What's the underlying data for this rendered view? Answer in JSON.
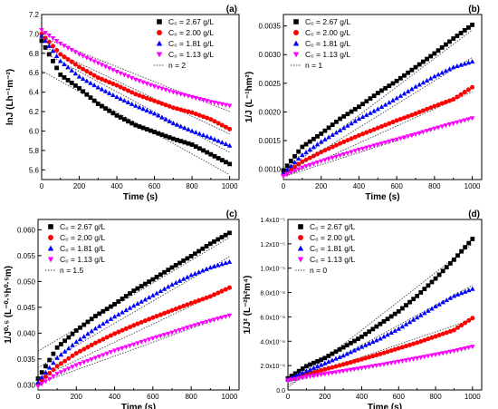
{
  "chart_data": [
    {
      "type": "scatter",
      "panel_label": "(a)",
      "ylabel": "lnJ (Lh⁻¹m⁻²)",
      "xlabel": "Time (s)",
      "xlim": [
        0,
        1050
      ],
      "ylim": [
        5.5,
        7.2
      ],
      "xticks": [
        "0",
        "200",
        "400",
        "600",
        "800",
        "1000"
      ],
      "yticks": [
        "5.6",
        "5.8",
        "6.0",
        "6.2",
        "6.4",
        "6.6",
        "6.8",
        "7.0",
        "7.2"
      ],
      "ytick_values": [
        5.6,
        5.8,
        6.0,
        6.2,
        6.4,
        6.6,
        6.8,
        7.0,
        7.2
      ],
      "legend_position": "top-right",
      "fit_label": "n = 2",
      "series": [
        {
          "name": "C₀ = 2.67 g/L",
          "marker": "square",
          "color": "#000000",
          "x": [
            0,
            100,
            200,
            300,
            400,
            500,
            600,
            700,
            800,
            900,
            1000
          ],
          "y": [
            6.93,
            6.58,
            6.44,
            6.28,
            6.16,
            6.06,
            5.99,
            5.92,
            5.86,
            5.76,
            5.66
          ],
          "fit": [
            [
              0,
              6.62
            ],
            [
              1000,
              5.55
            ]
          ]
        },
        {
          "name": "C₀ = 2.00 g/L",
          "marker": "circle",
          "color": "#ff0000",
          "x": [
            0,
            100,
            200,
            300,
            400,
            500,
            600,
            700,
            800,
            900,
            1000
          ],
          "y": [
            7.0,
            6.79,
            6.66,
            6.55,
            6.47,
            6.38,
            6.31,
            6.24,
            6.19,
            6.12,
            6.02
          ],
          "fit": [
            [
              0,
              6.88
            ],
            [
              1000,
              5.97
            ]
          ]
        },
        {
          "name": "C₀ = 1.81 g/L",
          "marker": "triangle-up",
          "color": "#0000ff",
          "x": [
            0,
            100,
            200,
            300,
            400,
            500,
            600,
            700,
            800,
            900,
            1000
          ],
          "y": [
            6.98,
            6.72,
            6.56,
            6.45,
            6.35,
            6.26,
            6.18,
            6.08,
            6.0,
            5.93,
            5.85
          ],
          "fit": [
            [
              0,
              6.82
            ],
            [
              1000,
              5.78
            ]
          ]
        },
        {
          "name": "C₀ = 1.13 g/L",
          "marker": "triangle-down",
          "color": "#ff00ff",
          "x": [
            0,
            100,
            200,
            300,
            400,
            500,
            600,
            700,
            800,
            900,
            1000
          ],
          "y": [
            7.04,
            6.9,
            6.79,
            6.7,
            6.61,
            6.53,
            6.46,
            6.4,
            6.35,
            6.3,
            6.26
          ],
          "fit": [
            [
              0,
              6.97
            ],
            [
              1000,
              6.2
            ]
          ]
        }
      ]
    },
    {
      "type": "scatter",
      "panel_label": "(b)",
      "ylabel": "1/J (L⁻¹hm²)",
      "xlabel": "Time (s)",
      "xlim": [
        0,
        1050
      ],
      "ylim": [
        0.00082,
        0.0037
      ],
      "xticks": [
        "0",
        "200",
        "400",
        "600",
        "800",
        "1000"
      ],
      "yticks": [
        "0.0010",
        "0.0015",
        "0.0020",
        "0.0025",
        "0.0030",
        "0.0035"
      ],
      "ytick_values": [
        0.001,
        0.0015,
        0.002,
        0.0025,
        0.003,
        0.0035
      ],
      "legend_position": "top-left",
      "fit_label": "n = 1",
      "series": [
        {
          "name": "C₀ = 2.67 g/L",
          "marker": "square",
          "color": "#000000",
          "x": [
            0,
            100,
            200,
            300,
            400,
            500,
            600,
            700,
            800,
            900,
            1000
          ],
          "y": [
            0.00098,
            0.00139,
            0.00162,
            0.00188,
            0.00209,
            0.00233,
            0.00254,
            0.00278,
            0.00302,
            0.00328,
            0.00352
          ],
          "fit": [
            [
              0,
              0.00095
            ],
            [
              1000,
              0.00343
            ]
          ]
        },
        {
          "name": "C₀ = 2.00 g/L",
          "marker": "circle",
          "color": "#ff0000",
          "x": [
            0,
            100,
            200,
            300,
            400,
            500,
            600,
            700,
            800,
            900,
            1000
          ],
          "y": [
            0.00091,
            0.00113,
            0.0013,
            0.00145,
            0.00159,
            0.00172,
            0.00185,
            0.00197,
            0.0021,
            0.00222,
            0.00243
          ],
          "fit": [
            [
              0,
              0.00086
            ],
            [
              1000,
              0.00235
            ]
          ]
        },
        {
          "name": "C₀ = 1.81 g/L",
          "marker": "triangle-up",
          "color": "#0000ff",
          "x": [
            0,
            100,
            200,
            300,
            400,
            500,
            600,
            700,
            800,
            900,
            1000
          ],
          "y": [
            0.00093,
            0.00125,
            0.00148,
            0.00168,
            0.00188,
            0.00205,
            0.00224,
            0.00244,
            0.00262,
            0.00278,
            0.00288
          ],
          "fit": [
            [
              0,
              0.00091
            ],
            [
              1000,
              0.00295
            ]
          ]
        },
        {
          "name": "C₀ = 1.13 g/L",
          "marker": "triangle-down",
          "color": "#ff00ff",
          "x": [
            0,
            100,
            200,
            300,
            400,
            500,
            600,
            700,
            800,
            900,
            1000
          ],
          "y": [
            0.00088,
            0.00103,
            0.00114,
            0.00124,
            0.00134,
            0.00143,
            0.00152,
            0.00161,
            0.00171,
            0.0018,
            0.00189
          ],
          "fit": [
            [
              0,
              0.00087
            ],
            [
              1000,
              0.00192
            ]
          ]
        }
      ]
    },
    {
      "type": "scatter",
      "panel_label": "(c)",
      "ylabel": "1/J⁰·⁵ (L⁻⁰·⁵h⁰·⁵m)",
      "xlabel": "Time (s)",
      "xlim": [
        0,
        1050
      ],
      "ylim": [
        0.029,
        0.062
      ],
      "xticks": [
        "0",
        "200",
        "400",
        "600",
        "800",
        "1000"
      ],
      "yticks": [
        "0.030",
        "0.035",
        "0.040",
        "0.045",
        "0.050",
        "0.055",
        "0.060"
      ],
      "ytick_values": [
        0.03,
        0.035,
        0.04,
        0.045,
        0.05,
        0.055,
        0.06
      ],
      "legend_position": "top-left",
      "fit_label": "n = 1.5",
      "series": [
        {
          "name": "C₀ = 2.67 g/L",
          "marker": "square",
          "color": "#000000",
          "x": [
            0,
            100,
            200,
            300,
            400,
            500,
            600,
            700,
            800,
            900,
            1000
          ],
          "y": [
            0.0312,
            0.0372,
            0.0405,
            0.0433,
            0.0456,
            0.0482,
            0.0504,
            0.0527,
            0.0549,
            0.0573,
            0.0594
          ],
          "fit": [
            [
              0,
              0.0365
            ],
            [
              1000,
              0.0585
            ]
          ]
        },
        {
          "name": "C₀ = 2.00 g/L",
          "marker": "circle",
          "color": "#ff0000",
          "x": [
            0,
            100,
            200,
            300,
            400,
            500,
            600,
            700,
            800,
            900,
            1000
          ],
          "y": [
            0.0302,
            0.0336,
            0.0361,
            0.0381,
            0.0399,
            0.0415,
            0.043,
            0.0444,
            0.0458,
            0.0471,
            0.0488
          ],
          "fit": [
            [
              0,
              0.0312
            ],
            [
              1000,
              0.0488
            ]
          ]
        },
        {
          "name": "C₀ = 1.81 g/L",
          "marker": "triangle-up",
          "color": "#0000ff",
          "x": [
            0,
            100,
            200,
            300,
            400,
            500,
            600,
            700,
            800,
            900,
            1000
          ],
          "y": [
            0.0305,
            0.0352,
            0.0383,
            0.0409,
            0.0432,
            0.0453,
            0.0473,
            0.0494,
            0.0512,
            0.0527,
            0.0538
          ],
          "fit": [
            [
              0,
              0.0333
            ],
            [
              1000,
              0.0548
            ]
          ]
        },
        {
          "name": "C₀ = 1.13 g/L",
          "marker": "triangle-down",
          "color": "#ff00ff",
          "x": [
            0,
            100,
            200,
            300,
            400,
            500,
            600,
            700,
            800,
            900,
            1000
          ],
          "y": [
            0.0297,
            0.0321,
            0.0338,
            0.0352,
            0.0366,
            0.0378,
            0.039,
            0.0401,
            0.0413,
            0.0424,
            0.0434
          ],
          "fit": [
            [
              0,
              0.0302
            ],
            [
              1000,
              0.0436
            ]
          ]
        }
      ]
    },
    {
      "type": "scatter",
      "panel_label": "(d)",
      "ylabel": "1/J² (L⁻²h²m⁴)",
      "xlabel": "Time (s)",
      "xlim": [
        0,
        1050
      ],
      "ylim": [
        0,
        1.4e-05
      ],
      "xticks": [
        "0",
        "200",
        "400",
        "600",
        "800",
        "1000"
      ],
      "yticks": [
        "0.0",
        "2.0x10⁻⁶",
        "4.0x10⁻⁶",
        "6.0x10⁻⁶",
        "8.0x10⁻⁶",
        "1.0x10⁻⁵",
        "1.2x10⁻⁵",
        "1.4x10⁻⁵"
      ],
      "ytick_values": [
        0,
        2e-06,
        4e-06,
        6e-06,
        8e-06,
        1e-05,
        1.2e-05,
        1.4e-05
      ],
      "legend_position": "top-left",
      "fit_label": "n = 0",
      "series": [
        {
          "name": "C₀ = 2.67 g/L",
          "marker": "square",
          "color": "#000000",
          "x": [
            0,
            100,
            200,
            300,
            400,
            500,
            600,
            700,
            800,
            900,
            1000
          ],
          "y": [
            9.5e-07,
            1.95e-06,
            2.62e-06,
            3.5e-06,
            4.37e-06,
            5.42e-06,
            6.45e-06,
            7.72e-06,
            9.15e-06,
            1.07e-05,
            1.24e-05
          ],
          "fit": [
            [
              0,
              2e-07
            ],
            [
              1000,
              1.2e-05
            ]
          ]
        },
        {
          "name": "C₀ = 2.00 g/L",
          "marker": "circle",
          "color": "#ff0000",
          "x": [
            0,
            100,
            200,
            300,
            400,
            500,
            600,
            700,
            800,
            900,
            1000
          ],
          "y": [
            8.3e-07,
            1.28e-06,
            1.69e-06,
            2.1e-06,
            2.52e-06,
            2.95e-06,
            3.42e-06,
            3.88e-06,
            4.4e-06,
            4.92e-06,
            5.9e-06
          ],
          "fit": [
            [
              0,
              6.5e-07
            ],
            [
              1000,
              5.8e-06
            ]
          ]
        },
        {
          "name": "C₀ = 1.81 g/L",
          "marker": "triangle-up",
          "color": "#0000ff",
          "x": [
            0,
            100,
            200,
            300,
            400,
            500,
            600,
            700,
            800,
            900,
            1000
          ],
          "y": [
            8.7e-07,
            1.55e-06,
            2.19e-06,
            2.82e-06,
            3.54e-06,
            4.22e-06,
            5.02e-06,
            5.95e-06,
            6.86e-06,
            7.72e-06,
            8.3e-06
          ],
          "fit": [
            [
              0,
              4e-07
            ],
            [
              1000,
              8.6e-06
            ]
          ]
        },
        {
          "name": "C₀ = 1.13 g/L",
          "marker": "triangle-down",
          "color": "#ff00ff",
          "x": [
            0,
            100,
            200,
            300,
            400,
            500,
            600,
            700,
            800,
            900,
            1000
          ],
          "y": [
            7.8e-07,
            1.06e-06,
            1.31e-06,
            1.55e-06,
            1.8e-06,
            2.05e-06,
            2.32e-06,
            2.6e-06,
            2.9e-06,
            3.2e-06,
            3.55e-06
          ],
          "fit": [
            [
              0,
              7e-07
            ],
            [
              1000,
              3.6e-06
            ]
          ]
        }
      ]
    }
  ]
}
